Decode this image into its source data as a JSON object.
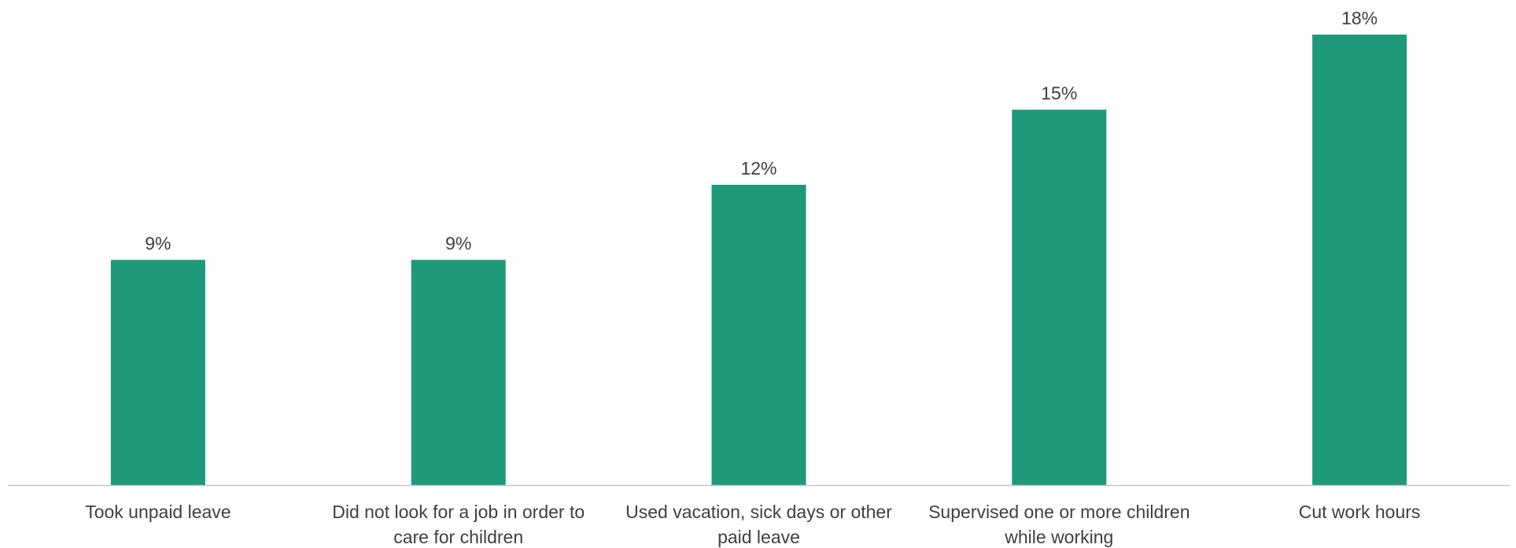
{
  "chart_data": {
    "type": "bar",
    "categories": [
      [
        "Took unpaid leave"
      ],
      [
        "Did not look for a job in order to",
        "care for children"
      ],
      [
        "Used vacation, sick days or other",
        "paid leave"
      ],
      [
        "Supervised one or more children",
        "while working"
      ],
      [
        "Cut work hours"
      ]
    ],
    "values": [
      9,
      9,
      12,
      15,
      18
    ],
    "value_labels": [
      "9%",
      "9%",
      "12%",
      "15%",
      "18%"
    ],
    "value_unit": "%",
    "ylim": [
      0,
      18
    ],
    "grid": false,
    "legend": "none",
    "title": "",
    "xlabel": "",
    "ylabel": "",
    "bar_color": "#1e9a7a",
    "axis_color": "#c8c8c8",
    "text_color": "#404040"
  }
}
